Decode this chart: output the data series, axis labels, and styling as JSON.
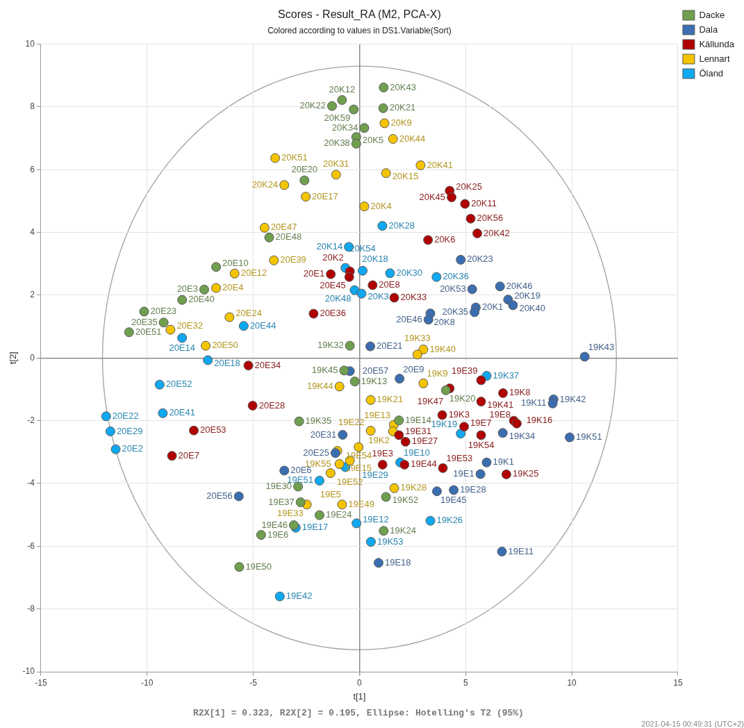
{
  "chart_data": {
    "type": "scatter",
    "title": "Scores - Result_RA (M2, PCA-X)",
    "subtitle": "Colored according to values in DS1.Variable(Sort)",
    "xlabel": "t[1]",
    "ylabel": "t[2]",
    "xlim": [
      -15,
      15
    ],
    "ylim": [
      -10,
      10
    ],
    "xticks": [
      -15,
      -10,
      -5,
      0,
      5,
      10,
      15
    ],
    "yticks": [
      -10,
      -8,
      -6,
      -4,
      -2,
      0,
      2,
      4,
      6,
      8,
      10
    ],
    "grid": true,
    "legend": "top right",
    "marker": "circle",
    "series": [
      {
        "name": "Dacke",
        "color": "#6f9f4f",
        "x": [
          -6.75,
          -7.31,
          -8.35,
          -10.14,
          -9.22,
          -10.85,
          1.14,
          -0.82,
          -1.29,
          -0.27,
          1.12,
          0.23,
          -0.15,
          -0.15,
          -2.59,
          -4.25,
          -0.45,
          -0.72,
          -0.22,
          4.07,
          -2.84,
          1.86,
          -2.89,
          1.25,
          -2.77,
          -1.88,
          -3.09,
          1.14,
          -4.63,
          -5.66
        ],
        "values": [
          2.9,
          2.18,
          1.85,
          1.48,
          1.13,
          0.82,
          8.62,
          8.22,
          8.03,
          7.92,
          7.96,
          7.33,
          7.04,
          6.83,
          5.66,
          3.84,
          0.39,
          -0.4,
          -0.75,
          -1.03,
          -2.02,
          -1.99,
          -4.1,
          -4.43,
          -4.6,
          -5.01,
          -5.33,
          -5.51,
          -5.64,
          -6.66
        ]
      },
      {
        "name": "Dala",
        "color": "#3b6eb0",
        "x": [
          4.77,
          5.31,
          6.62,
          7.0,
          7.23,
          5.48,
          5.42,
          3.34,
          3.25,
          0.51,
          10.61,
          -0.45,
          1.89,
          9.14,
          9.1,
          6.75,
          9.9,
          -0.79,
          -1.13,
          -3.54,
          5.99,
          5.7,
          3.65,
          4.44,
          -5.68,
          0.9,
          6.71
        ],
        "values": [
          3.13,
          2.19,
          2.28,
          1.86,
          1.68,
          1.61,
          1.46,
          1.42,
          1.22,
          0.37,
          0.04,
          -0.42,
          -0.66,
          -1.32,
          -1.45,
          -2.39,
          -2.53,
          -2.45,
          -3.03,
          -3.59,
          -3.33,
          -3.7,
          -4.25,
          -4.21,
          -4.41,
          -6.53,
          -6.17
        ]
      },
      {
        "name": "Källunda",
        "color": "#b00000",
        "x": [
          4.25,
          4.34,
          4.97,
          5.24,
          5.55,
          3.23,
          -1.35,
          -0.45,
          -0.48,
          0.62,
          1.64,
          -2.16,
          -5.23,
          -5.03,
          -7.8,
          -8.83,
          5.73,
          4.25,
          6.76,
          5.73,
          3.9,
          1.86,
          2.17,
          4.93,
          5.73,
          7.27,
          7.41,
          1.09,
          2.12,
          3.93,
          6.92
        ],
        "values": [
          5.33,
          5.12,
          4.91,
          4.44,
          3.97,
          3.76,
          2.67,
          2.76,
          2.58,
          2.32,
          1.92,
          1.41,
          -0.24,
          -1.52,
          -2.31,
          -3.12,
          -0.71,
          -0.97,
          -1.12,
          -1.39,
          -1.82,
          -2.46,
          -2.67,
          -2.19,
          -2.46,
          -2.0,
          -2.09,
          -3.4,
          -3.4,
          -3.51,
          -3.71
        ]
      },
      {
        "name": "Lennart",
        "color": "#f5c400",
        "x": [
          -5.88,
          -6.75,
          -8.9,
          -6.12,
          -7.24,
          1.18,
          1.58,
          -3.97,
          2.88,
          -1.1,
          1.25,
          -3.54,
          -2.53,
          0.23,
          -4.47,
          -4.03,
          3.01,
          2.73,
          -0.94,
          3.01,
          0.53,
          1.62,
          0.53,
          1.58,
          -0.04,
          -1.04,
          -0.45,
          -0.94,
          -1.36,
          1.64,
          -2.48,
          -0.82
        ],
        "values": [
          2.69,
          2.23,
          0.9,
          1.3,
          0.39,
          7.48,
          6.98,
          6.37,
          6.14,
          5.84,
          5.89,
          5.51,
          5.14,
          4.83,
          4.15,
          3.11,
          0.27,
          0.11,
          -0.91,
          -0.81,
          -1.34,
          -2.13,
          -2.32,
          -2.34,
          -2.84,
          -2.96,
          -3.27,
          -3.38,
          -3.67,
          -4.15,
          -4.67,
          -4.67
        ]
      },
      {
        "name": "Öland",
        "color": "#10a8f0",
        "x": [
          -5.45,
          -8.35,
          -7.14,
          1.08,
          -0.5,
          -0.66,
          0.15,
          1.44,
          -0.23,
          0.1,
          3.63,
          -9.41,
          -11.93,
          -9.26,
          -11.73,
          -11.48,
          5.99,
          4.77,
          -0.66,
          1.92,
          -1.88,
          -0.14,
          3.34,
          -3.0,
          0.54,
          -3.75
        ],
        "values": [
          1.02,
          0.64,
          -0.07,
          4.21,
          3.54,
          2.87,
          2.78,
          2.7,
          2.16,
          2.05,
          2.58,
          -0.85,
          -1.86,
          -1.76,
          -2.34,
          -2.91,
          -0.57,
          -2.41,
          -3.48,
          -3.33,
          -3.91,
          -5.27,
          -5.19,
          -5.41,
          -5.86,
          -7.6
        ]
      }
    ],
    "annotations": [
      "R2X[1] = 0.323, R2X[2] = 0.195, Ellipse: Hotelling's T2 (95%)",
      "2021-04-15 00:49:31 (UTC+2)",
      {
        "text": "20E10",
        "x": -6.75,
        "y": 2.9
      },
      {
        "text": "20E3",
        "x": -7.31,
        "y": 2.18
      },
      {
        "text": "20E40",
        "x": -8.35,
        "y": 1.85
      },
      {
        "text": "20E23",
        "x": -10.14,
        "y": 1.48
      },
      {
        "text": "20E35",
        "x": -9.22,
        "y": 1.13
      },
      {
        "text": "20E51",
        "x": -10.85,
        "y": 0.82
      },
      {
        "text": "20K43",
        "x": 1.14,
        "y": 8.62
      },
      {
        "text": "20K12",
        "x": -0.82,
        "y": 8.22
      },
      {
        "text": "20K22",
        "x": -1.29,
        "y": 8.03
      },
      {
        "text": "20K59",
        "x": -0.27,
        "y": 7.92
      },
      {
        "text": "20K21",
        "x": 1.12,
        "y": 7.96
      },
      {
        "text": "20K34",
        "x": 0.23,
        "y": 7.33
      },
      {
        "text": "20K5",
        "x": -0.15,
        "y": 7.04
      },
      {
        "text": "20K38",
        "x": -0.15,
        "y": 6.83
      },
      {
        "text": "20E20",
        "x": -2.59,
        "y": 5.66
      },
      {
        "text": "20E48",
        "x": -4.25,
        "y": 3.84
      },
      {
        "text": "19K32",
        "x": -0.45,
        "y": 0.39
      },
      {
        "text": "19K45",
        "x": -0.72,
        "y": -0.4
      },
      {
        "text": "19K13",
        "x": -0.22,
        "y": -0.75
      },
      {
        "text": "19K20",
        "x": 4.07,
        "y": -1.03
      },
      {
        "text": "19K35",
        "x": -2.84,
        "y": -2.02
      },
      {
        "text": "19E14",
        "x": 1.86,
        "y": -1.99
      },
      {
        "text": "19E30",
        "x": -2.89,
        "y": -4.1
      },
      {
        "text": "19K52",
        "x": 1.25,
        "y": -4.43
      },
      {
        "text": "19E37",
        "x": -2.77,
        "y": -4.6
      },
      {
        "text": "19E24",
        "x": -1.88,
        "y": -5.01
      },
      {
        "text": "19E46",
        "x": -3.09,
        "y": -5.33
      },
      {
        "text": "19K24",
        "x": 1.14,
        "y": -5.51
      },
      {
        "text": "19E6",
        "x": -4.63,
        "y": -5.64
      },
      {
        "text": "19E50",
        "x": -5.66,
        "y": -6.66
      },
      {
        "text": "20K23",
        "x": 4.77,
        "y": 3.13
      },
      {
        "text": "20K53",
        "x": 5.31,
        "y": 2.19
      },
      {
        "text": "20K46",
        "x": 6.62,
        "y": 2.28
      },
      {
        "text": "20K19",
        "x": 7.0,
        "y": 1.86
      },
      {
        "text": "20K40",
        "x": 7.23,
        "y": 1.68
      },
      {
        "text": "20K1",
        "x": 5.48,
        "y": 1.61
      },
      {
        "text": "20K35",
        "x": 5.42,
        "y": 1.46
      },
      {
        "text": "20K8",
        "x": 3.34,
        "y": 1.42
      },
      {
        "text": "20E46",
        "x": 3.25,
        "y": 1.22
      },
      {
        "text": "20E21",
        "x": 0.51,
        "y": 0.37
      },
      {
        "text": "19K43",
        "x": 10.61,
        "y": 0.04
      },
      {
        "text": "20E57",
        "x": -0.45,
        "y": -0.42
      },
      {
        "text": "20E9",
        "x": 1.89,
        "y": -0.66
      },
      {
        "text": "19K42",
        "x": 9.14,
        "y": -1.32
      },
      {
        "text": "19K11",
        "x": 9.1,
        "y": -1.45
      },
      {
        "text": "19K34",
        "x": 6.75,
        "y": -2.39
      },
      {
        "text": "19K51",
        "x": 9.9,
        "y": -2.53
      },
      {
        "text": "20E31",
        "x": -0.79,
        "y": -2.45
      },
      {
        "text": "20E25",
        "x": -1.13,
        "y": -3.03
      },
      {
        "text": "20E6",
        "x": -3.54,
        "y": -3.59
      },
      {
        "text": "19K1",
        "x": 5.99,
        "y": -3.33
      },
      {
        "text": "19E1",
        "x": 5.7,
        "y": -3.7
      },
      {
        "text": "19E45",
        "x": 3.65,
        "y": -4.25
      },
      {
        "text": "19E28",
        "x": 4.44,
        "y": -4.21
      },
      {
        "text": "20E56",
        "x": -5.68,
        "y": -4.41
      },
      {
        "text": "19E18",
        "x": 0.9,
        "y": -6.53
      },
      {
        "text": "19E11",
        "x": 6.71,
        "y": -6.17
      },
      {
        "text": "20K25",
        "x": 4.25,
        "y": 5.33
      },
      {
        "text": "20K45",
        "x": 4.34,
        "y": 5.12
      },
      {
        "text": "20K11",
        "x": 4.97,
        "y": 4.91
      },
      {
        "text": "20K56",
        "x": 5.24,
        "y": 4.44
      },
      {
        "text": "20K42",
        "x": 5.55,
        "y": 3.97
      },
      {
        "text": "20K6",
        "x": 3.23,
        "y": 3.76
      },
      {
        "text": "20E1",
        "x": -1.35,
        "y": 2.67
      },
      {
        "text": "20K2",
        "x": -0.45,
        "y": 2.76
      },
      {
        "text": "20E45",
        "x": -0.48,
        "y": 2.58
      },
      {
        "text": "20E8",
        "x": 0.62,
        "y": 2.32
      },
      {
        "text": "20K33",
        "x": 1.64,
        "y": 1.92
      },
      {
        "text": "20E36",
        "x": -2.16,
        "y": 1.41
      },
      {
        "text": "20E34",
        "x": -5.23,
        "y": -0.24
      },
      {
        "text": "20E28",
        "x": -5.03,
        "y": -1.52
      },
      {
        "text": "20E53",
        "x": -7.8,
        "y": -2.31
      },
      {
        "text": "20E7",
        "x": -8.83,
        "y": -3.12
      },
      {
        "text": "19E39",
        "x": 5.73,
        "y": -0.71
      },
      {
        "text": "19K47",
        "x": 4.25,
        "y": -0.97
      },
      {
        "text": "19K8",
        "x": 6.76,
        "y": -1.12
      },
      {
        "text": "19K41",
        "x": 5.73,
        "y": -1.39
      },
      {
        "text": "19K3",
        "x": 3.9,
        "y": -1.82
      },
      {
        "text": "19E31",
        "x": 1.86,
        "y": -2.46
      },
      {
        "text": "19E27",
        "x": 2.17,
        "y": -2.67
      },
      {
        "text": "19E7",
        "x": 4.93,
        "y": -2.19
      },
      {
        "text": "19K54",
        "x": 5.73,
        "y": -2.46
      },
      {
        "text": "19K16",
        "x": 7.27,
        "y": -2.0
      },
      {
        "text": "19E8",
        "x": 7.41,
        "y": -2.09
      },
      {
        "text": "19E3",
        "x": 1.09,
        "y": -3.4
      },
      {
        "text": "19E44",
        "x": 2.12,
        "y": -3.4
      },
      {
        "text": "19E53",
        "x": 3.93,
        "y": -3.51
      },
      {
        "text": "19K25",
        "x": 6.92,
        "y": -3.71
      },
      {
        "text": "20E12",
        "x": -5.88,
        "y": 2.69
      },
      {
        "text": "20E4",
        "x": -6.75,
        "y": 2.23
      },
      {
        "text": "20E32",
        "x": -8.9,
        "y": 0.9
      },
      {
        "text": "20E24",
        "x": -6.12,
        "y": 1.3
      },
      {
        "text": "20E50",
        "x": -7.24,
        "y": 0.39
      },
      {
        "text": "20K9",
        "x": 1.18,
        "y": 7.48
      },
      {
        "text": "20K44",
        "x": 1.58,
        "y": 6.98
      },
      {
        "text": "20K51",
        "x": -3.97,
        "y": 6.37
      },
      {
        "text": "20K41",
        "x": 2.88,
        "y": 6.14
      },
      {
        "text": "20K31",
        "x": -1.1,
        "y": 5.84
      },
      {
        "text": "20K15",
        "x": 1.25,
        "y": 5.89
      },
      {
        "text": "20K24",
        "x": -3.54,
        "y": 5.51
      },
      {
        "text": "20E17",
        "x": -2.53,
        "y": 5.14
      },
      {
        "text": "20K4",
        "x": 0.23,
        "y": 4.83
      },
      {
        "text": "20E47",
        "x": -4.47,
        "y": 4.15
      },
      {
        "text": "20E39",
        "x": -4.03,
        "y": 3.11
      },
      {
        "text": "19K40",
        "x": 3.01,
        "y": 0.27
      },
      {
        "text": "19K33",
        "x": 2.73,
        "y": 0.11
      },
      {
        "text": "19K44",
        "x": -0.94,
        "y": -0.91
      },
      {
        "text": "19K9",
        "x": 3.01,
        "y": -0.81
      },
      {
        "text": "19K21",
        "x": 0.53,
        "y": -1.34
      },
      {
        "text": "19E13",
        "x": 1.62,
        "y": -2.13
      },
      {
        "text": "19E22",
        "x": 0.53,
        "y": -2.32
      },
      {
        "text": "19K2",
        "x": 1.58,
        "y": -2.34
      },
      {
        "text": "19E15",
        "x": -0.04,
        "y": -2.84
      },
      {
        "text": "19K55",
        "x": -1.04,
        "y": -2.96
      },
      {
        "text": "19E52",
        "x": -0.45,
        "y": -3.27
      },
      {
        "text": "19E54",
        "x": -0.94,
        "y": -3.38
      },
      {
        "text": "19E5",
        "x": -1.36,
        "y": -3.67
      },
      {
        "text": "19K28",
        "x": 1.64,
        "y": -4.15
      },
      {
        "text": "19E33",
        "x": -2.48,
        "y": -4.67
      },
      {
        "text": "19E49",
        "x": -0.82,
        "y": -4.67
      },
      {
        "text": "20E44",
        "x": -5.45,
        "y": 1.02
      },
      {
        "text": "20E14",
        "x": -8.35,
        "y": 0.64
      },
      {
        "text": "20E18",
        "x": -7.14,
        "y": -0.07
      },
      {
        "text": "20K28",
        "x": 1.08,
        "y": 4.21
      },
      {
        "text": "20K14",
        "x": -0.5,
        "y": 3.54
      },
      {
        "text": "20K18",
        "x": -0.66,
        "y": 2.87
      },
      {
        "text": "20K54",
        "x": 0.15,
        "y": 2.78
      },
      {
        "text": "20K30",
        "x": 1.44,
        "y": 2.7
      },
      {
        "text": "20K48",
        "x": -0.23,
        "y": 2.16
      },
      {
        "text": "20K3",
        "x": 0.1,
        "y": 2.05
      },
      {
        "text": "20K36",
        "x": 3.63,
        "y": 2.58
      },
      {
        "text": "20E52",
        "x": -9.41,
        "y": -0.85
      },
      {
        "text": "20E22",
        "x": -11.93,
        "y": -1.86
      },
      {
        "text": "20E41",
        "x": -9.26,
        "y": -1.76
      },
      {
        "text": "20E29",
        "x": -11.73,
        "y": -2.34
      },
      {
        "text": "20E2",
        "x": -11.48,
        "y": -2.91
      },
      {
        "text": "19K37",
        "x": 5.99,
        "y": -0.57
      },
      {
        "text": "19K19",
        "x": 4.77,
        "y": -2.41
      },
      {
        "text": "19E29",
        "x": -0.66,
        "y": -3.48
      },
      {
        "text": "19E10",
        "x": 1.92,
        "y": -3.33
      },
      {
        "text": "19E51",
        "x": -1.88,
        "y": -3.91
      },
      {
        "text": "19E12",
        "x": -0.14,
        "y": -5.27
      },
      {
        "text": "19K26",
        "x": 3.34,
        "y": -5.19
      },
      {
        "text": "19E17",
        "x": -3.0,
        "y": -5.41
      },
      {
        "text": "19K53",
        "x": 0.54,
        "y": -5.86
      },
      {
        "text": "19E42",
        "x": -3.75,
        "y": -7.6
      }
    ]
  }
}
